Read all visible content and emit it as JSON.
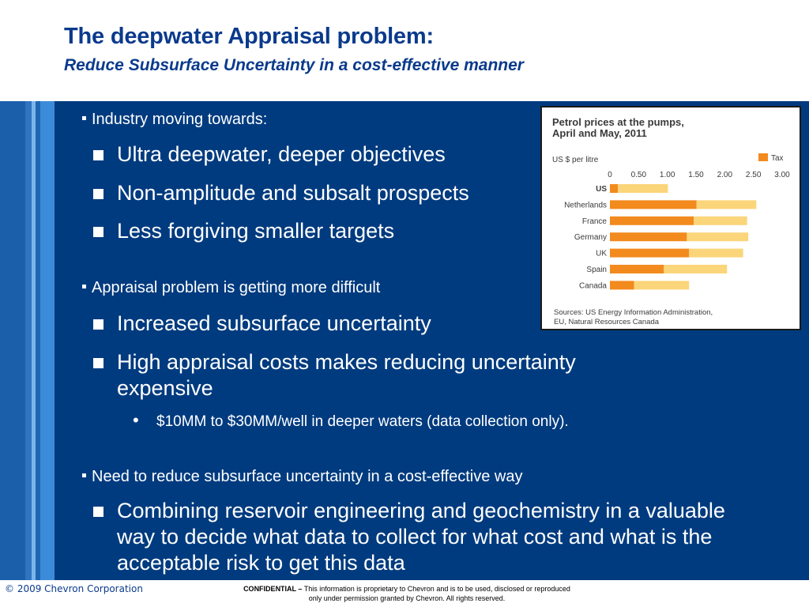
{
  "slide": {
    "title": "The deepwater Appraisal problem:",
    "subtitle": "Reduce Subsurface Uncertainty in a cost-effective manner"
  },
  "body": {
    "sections": [
      {
        "heading": "Industry moving towards:",
        "items": [
          "Ultra deepwater, deeper objectives",
          "Non-amplitude and subsalt prospects",
          "Less forgiving smaller targets"
        ]
      },
      {
        "heading": "Appraisal problem is getting more difficult",
        "items": [
          "Increased subsurface uncertainty",
          "High appraisal costs makes reducing uncertainty expensive"
        ],
        "sub_items": [
          "$10MM to $30MM/well in deeper waters (data collection only)."
        ]
      },
      {
        "heading": "Need to reduce subsurface uncertainty in a cost-effective way",
        "items": [
          "Combining reservoir engineering and geochemistry in a valuable way to decide what data to collect for what cost and what is the acceptable risk to get this data"
        ]
      }
    ]
  },
  "chart_data": {
    "type": "bar",
    "title": "Petrol prices at the pumps, April and May, 2011",
    "ylabel": "US $ per litre",
    "legend": "Tax",
    "legend_position": "top-right",
    "xlim": [
      0,
      3.0
    ],
    "ticks": [
      "0",
      "0.50",
      "1.00",
      "1.50",
      "2.00",
      "2.50",
      "3.00"
    ],
    "categories": [
      "US",
      "Netherlands",
      "France",
      "Germany",
      "UK",
      "Spain",
      "Canada"
    ],
    "series": [
      {
        "name": "Tax",
        "values": [
          0.14,
          1.51,
          1.46,
          1.34,
          1.38,
          0.94,
          0.42
        ]
      },
      {
        "values": [
          0.87,
          1.04,
          0.93,
          1.07,
          0.94,
          1.1,
          0.96
        ]
      }
    ],
    "colors": {
      "tax": "#f28a1e",
      "pretax": "#fbd57a"
    },
    "source": "Sources: US Energy Information Administration, EU, Natural Resources Canada",
    "grid": false
  },
  "footer": {
    "copyright": "© 2009 Chevron Corporation",
    "confidential_label": "CONFIDENTIAL –",
    "confidential_line1": "This information is proprietary to Chevron and is to be used, disclosed or reproduced",
    "confidential_line2": "only under permission granted by Chevron.  All rights reserved."
  },
  "colors": {
    "title": "#0a3a8c",
    "band": "#003b7f"
  }
}
